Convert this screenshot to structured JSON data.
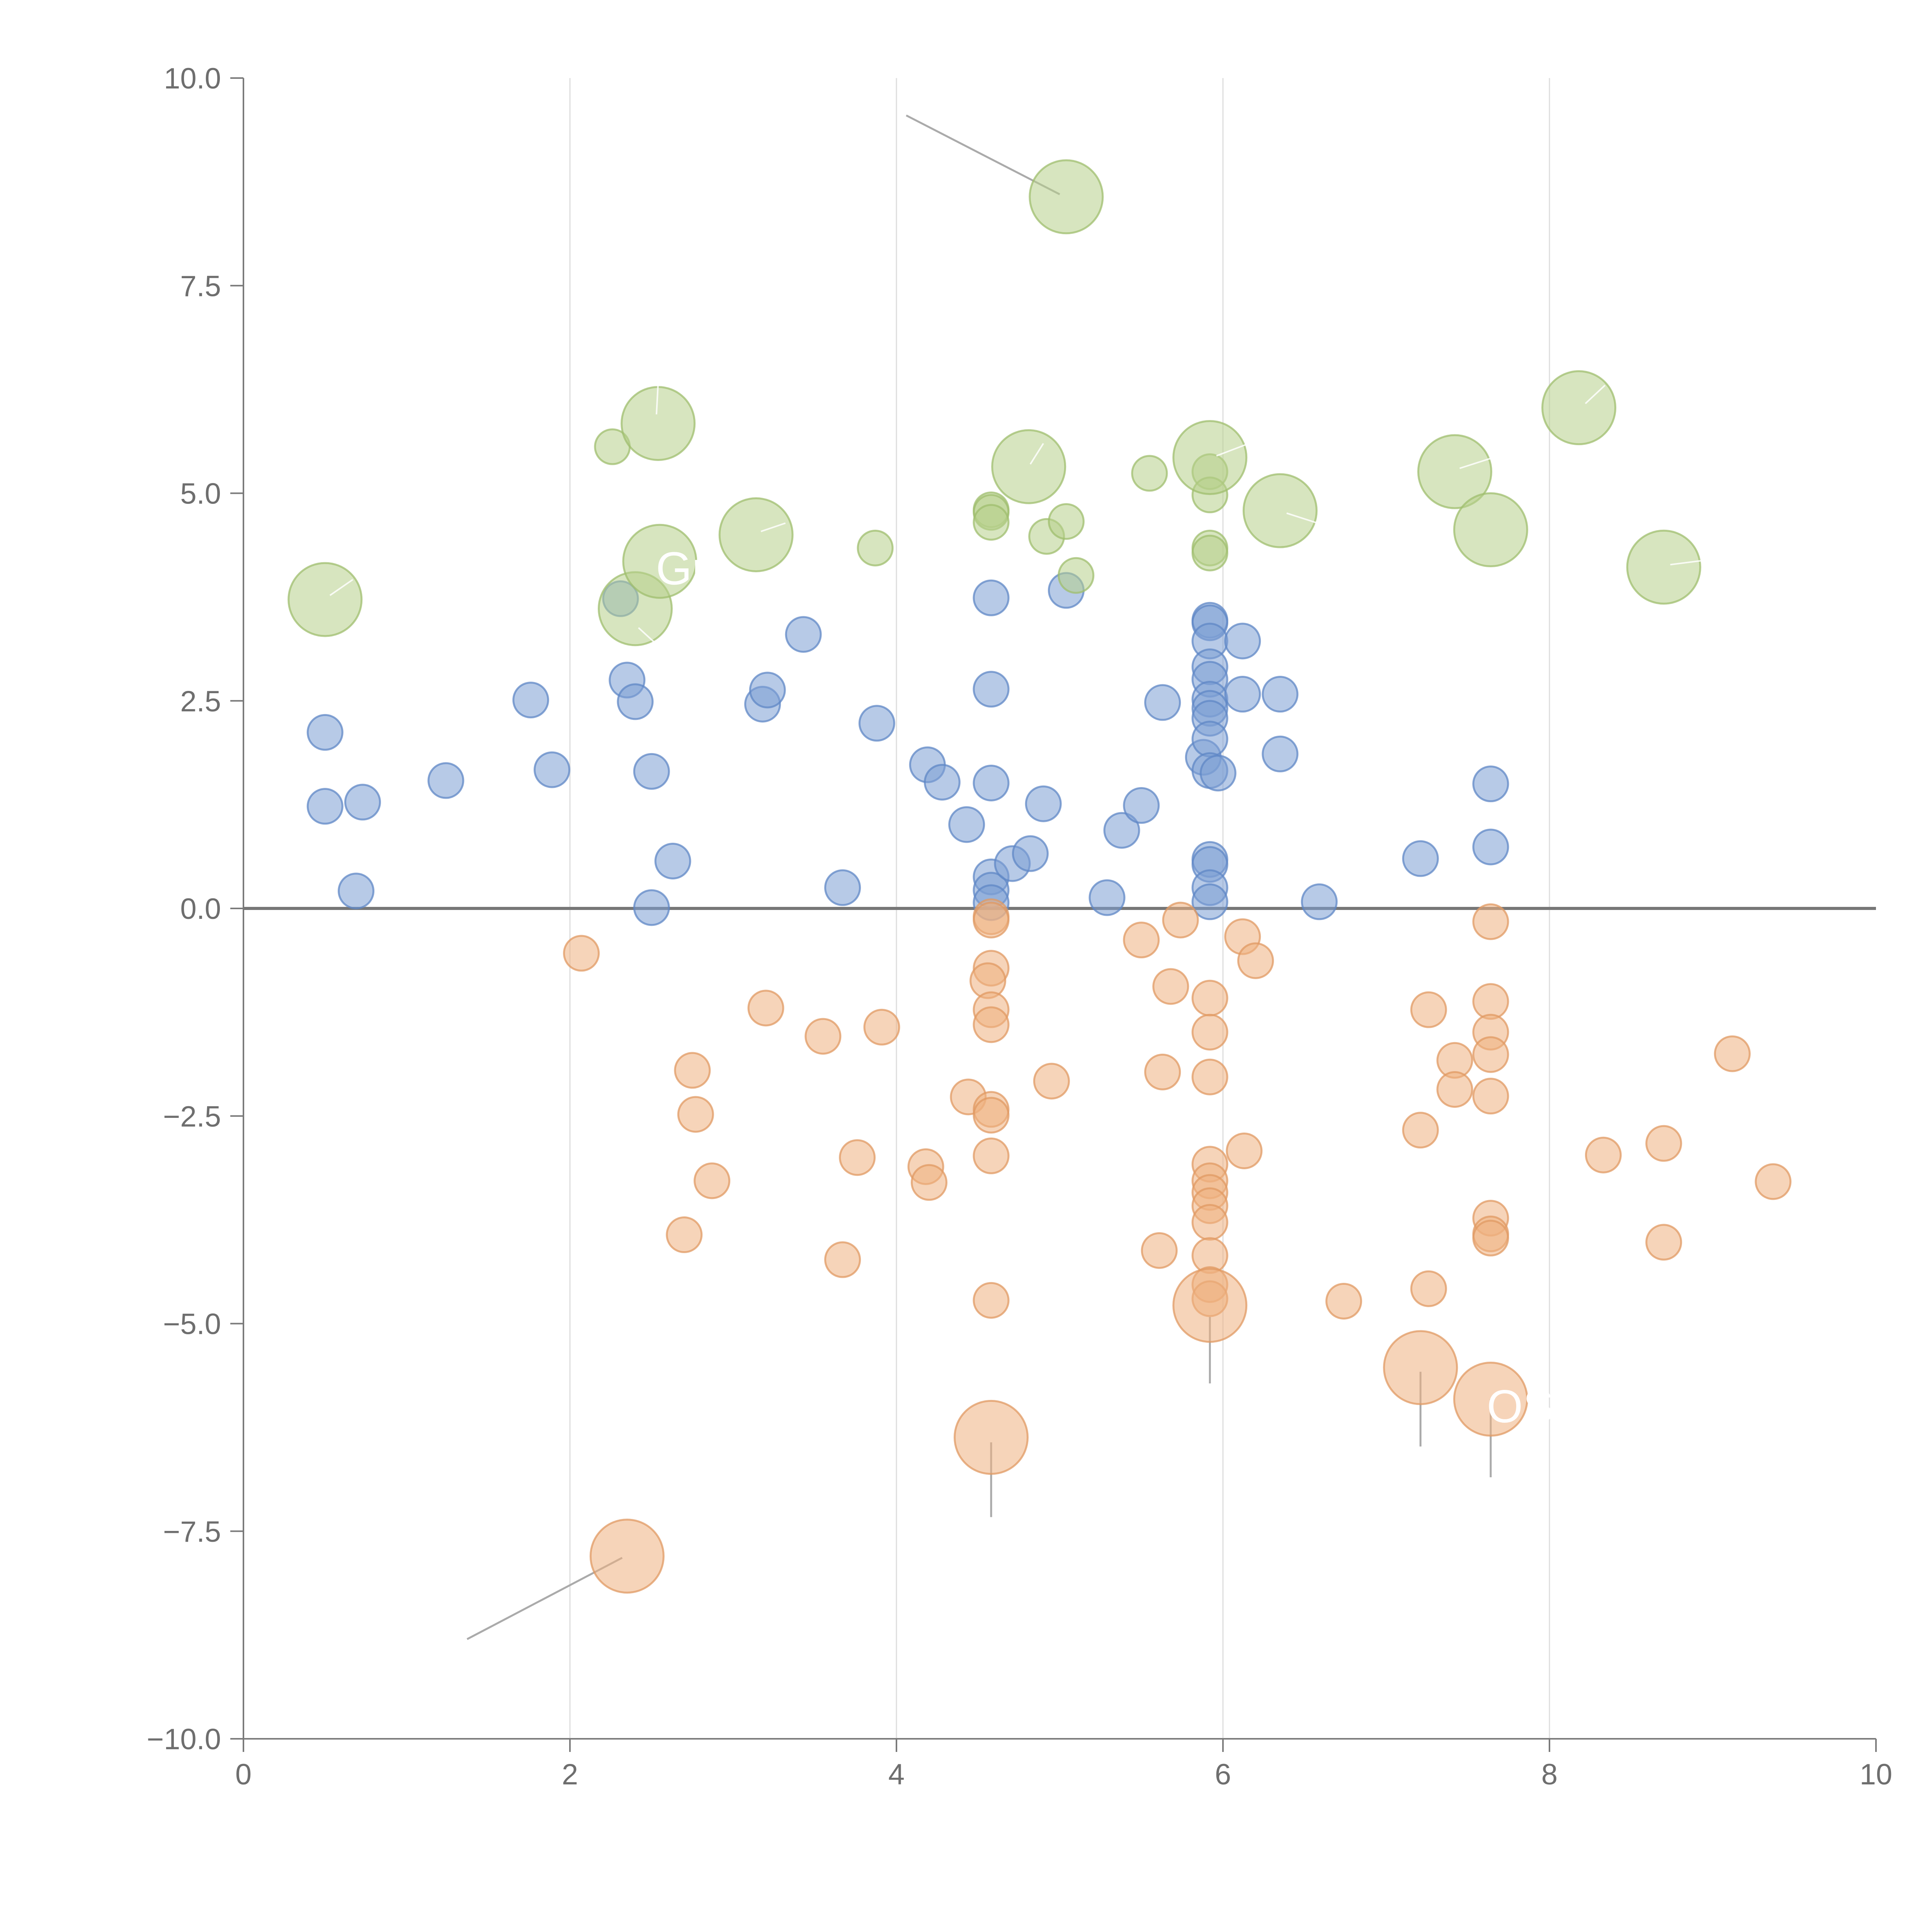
{
  "chart_data": {
    "type": "scatter",
    "title": "",
    "xlabel": "",
    "ylabel": "",
    "xlim": [
      0,
      10
    ],
    "ylim": [
      -10,
      10
    ],
    "x_ticks": [
      0,
      2,
      4,
      6,
      8,
      10
    ],
    "y_ticks": [
      -10,
      -7.5,
      -5,
      -2.5,
      0,
      2.5,
      5,
      7.5,
      10
    ],
    "x_tick_labels": [
      "0",
      "2",
      "4",
      "6",
      "8",
      "10"
    ],
    "y_tick_labels": [
      "−10.0",
      "−7.5",
      "−5.0",
      "−2.5",
      "0.0",
      "2.5",
      "5.0",
      "7.5",
      "10.0"
    ],
    "vertical_grid": true,
    "horizontal_grid": false,
    "zero_line": true,
    "series": [
      {
        "name": "blue",
        "color": "#7b9fd4",
        "stroke": "#5f87c6",
        "points": [
          {
            "x": 0.5,
            "y": 2.12,
            "size": 1
          },
          {
            "x": 0.5,
            "y": 1.23,
            "size": 1
          },
          {
            "x": 0.73,
            "y": 1.28,
            "size": 1
          },
          {
            "x": 0.69,
            "y": 0.21,
            "size": 1
          },
          {
            "x": 1.24,
            "y": 1.54,
            "size": 1
          },
          {
            "x": 1.76,
            "y": 2.51,
            "size": 1
          },
          {
            "x": 1.89,
            "y": 1.67,
            "size": 1
          },
          {
            "x": 2.31,
            "y": 3.73,
            "size": 1
          },
          {
            "x": 2.35,
            "y": 2.75,
            "size": 1
          },
          {
            "x": 2.4,
            "y": 2.49,
            "size": 1
          },
          {
            "x": 2.5,
            "y": 1.65,
            "size": 1
          },
          {
            "x": 2.5,
            "y": 0.01,
            "size": 1
          },
          {
            "x": 2.63,
            "y": 0.57,
            "size": 1
          },
          {
            "x": 3.18,
            "y": 2.46,
            "size": 1
          },
          {
            "x": 3.21,
            "y": 2.63,
            "size": 1
          },
          {
            "x": 3.43,
            "y": 3.3,
            "size": 1
          },
          {
            "x": 3.67,
            "y": 0.25,
            "size": 1
          },
          {
            "x": 3.88,
            "y": 2.23,
            "size": 1
          },
          {
            "x": 4.19,
            "y": 1.73,
            "size": 1
          },
          {
            "x": 4.28,
            "y": 1.52,
            "size": 1
          },
          {
            "x": 4.43,
            "y": 1.01,
            "size": 1
          },
          {
            "x": 4.58,
            "y": 3.74,
            "size": 1
          },
          {
            "x": 4.58,
            "y": 2.64,
            "size": 1
          },
          {
            "x": 4.58,
            "y": 1.51,
            "size": 1
          },
          {
            "x": 4.58,
            "y": 0.38,
            "size": 1
          },
          {
            "x": 4.58,
            "y": 0.22,
            "size": 1
          },
          {
            "x": 4.58,
            "y": 0.07,
            "size": 1
          },
          {
            "x": 4.71,
            "y": 0.54,
            "size": 1
          },
          {
            "x": 4.82,
            "y": 0.66,
            "size": 1
          },
          {
            "x": 4.9,
            "y": 1.26,
            "size": 1
          },
          {
            "x": 5.04,
            "y": 3.83,
            "size": 1
          },
          {
            "x": 5.29,
            "y": 0.13,
            "size": 1
          },
          {
            "x": 5.38,
            "y": 0.94,
            "size": 1
          },
          {
            "x": 5.5,
            "y": 1.24,
            "size": 1
          },
          {
            "x": 5.63,
            "y": 2.48,
            "size": 1
          },
          {
            "x": 5.88,
            "y": 1.82,
            "size": 1
          },
          {
            "x": 5.92,
            "y": 3.47,
            "size": 1
          },
          {
            "x": 5.92,
            "y": 3.44,
            "size": 1
          },
          {
            "x": 5.92,
            "y": 3.22,
            "size": 1
          },
          {
            "x": 5.92,
            "y": 2.91,
            "size": 1
          },
          {
            "x": 5.92,
            "y": 2.76,
            "size": 1
          },
          {
            "x": 5.92,
            "y": 2.52,
            "size": 1
          },
          {
            "x": 5.92,
            "y": 2.41,
            "size": 1
          },
          {
            "x": 5.92,
            "y": 2.29,
            "size": 1
          },
          {
            "x": 5.92,
            "y": 2.04,
            "size": 1
          },
          {
            "x": 5.92,
            "y": 1.66,
            "size": 1
          },
          {
            "x": 5.97,
            "y": 1.63,
            "size": 1
          },
          {
            "x": 5.92,
            "y": 0.59,
            "size": 1
          },
          {
            "x": 5.92,
            "y": 0.53,
            "size": 1
          },
          {
            "x": 5.92,
            "y": 0.25,
            "size": 1
          },
          {
            "x": 5.92,
            "y": 0.08,
            "size": 1
          },
          {
            "x": 6.12,
            "y": 3.22,
            "size": 1
          },
          {
            "x": 6.12,
            "y": 2.58,
            "size": 1
          },
          {
            "x": 6.35,
            "y": 2.58,
            "size": 1
          },
          {
            "x": 6.35,
            "y": 1.86,
            "size": 1
          },
          {
            "x": 6.59,
            "y": 0.08,
            "size": 1
          },
          {
            "x": 7.21,
            "y": 0.6,
            "size": 1
          },
          {
            "x": 7.64,
            "y": 1.5,
            "size": 1
          },
          {
            "x": 7.64,
            "y": 0.74,
            "size": 1
          }
        ]
      },
      {
        "name": "orange",
        "color": "#efb07f",
        "stroke": "#e09a63",
        "points": [
          {
            "x": 2.07,
            "y": -0.54,
            "size": 1
          },
          {
            "x": 2.75,
            "y": -1.95,
            "size": 1
          },
          {
            "x": 2.77,
            "y": -2.48,
            "size": 1
          },
          {
            "x": 2.7,
            "y": -3.93,
            "size": 1
          },
          {
            "x": 2.87,
            "y": -3.28,
            "size": 1
          },
          {
            "x": 3.2,
            "y": -1.2,
            "size": 1
          },
          {
            "x": 3.55,
            "y": -1.54,
            "size": 1
          },
          {
            "x": 3.67,
            "y": -4.23,
            "size": 1
          },
          {
            "x": 3.76,
            "y": -3.0,
            "size": 1
          },
          {
            "x": 3.91,
            "y": -1.43,
            "size": 1
          },
          {
            "x": 4.18,
            "y": -3.11,
            "size": 1
          },
          {
            "x": 4.2,
            "y": -3.3,
            "size": 1
          },
          {
            "x": 4.44,
            "y": -2.27,
            "size": 1
          },
          {
            "x": 4.58,
            "y": -0.1,
            "size": 1
          },
          {
            "x": 4.58,
            "y": -0.14,
            "size": 1
          },
          {
            "x": 4.58,
            "y": -0.72,
            "size": 1
          },
          {
            "x": 4.56,
            "y": -0.87,
            "size": 1
          },
          {
            "x": 4.58,
            "y": -1.22,
            "size": 1
          },
          {
            "x": 4.58,
            "y": -1.4,
            "size": 1
          },
          {
            "x": 4.58,
            "y": -2.42,
            "size": 1
          },
          {
            "x": 4.58,
            "y": -2.49,
            "size": 1
          },
          {
            "x": 4.58,
            "y": -2.98,
            "size": 1
          },
          {
            "x": 4.58,
            "y": -4.72,
            "size": 1
          },
          {
            "x": 4.95,
            "y": -2.08,
            "size": 1
          },
          {
            "x": 5.5,
            "y": -0.38,
            "size": 1
          },
          {
            "x": 5.63,
            "y": -1.97,
            "size": 1
          },
          {
            "x": 5.61,
            "y": -4.12,
            "size": 1
          },
          {
            "x": 5.68,
            "y": -0.94,
            "size": 1
          },
          {
            "x": 5.74,
            "y": -0.14,
            "size": 1
          },
          {
            "x": 5.92,
            "y": -1.08,
            "size": 1
          },
          {
            "x": 5.92,
            "y": -1.49,
            "size": 1
          },
          {
            "x": 5.92,
            "y": -2.03,
            "size": 1
          },
          {
            "x": 5.92,
            "y": -3.08,
            "size": 1
          },
          {
            "x": 5.92,
            "y": -3.28,
            "size": 1
          },
          {
            "x": 5.92,
            "y": -3.42,
            "size": 1
          },
          {
            "x": 5.92,
            "y": -3.58,
            "size": 1
          },
          {
            "x": 5.92,
            "y": -3.78,
            "size": 1
          },
          {
            "x": 5.92,
            "y": -4.18,
            "size": 1
          },
          {
            "x": 5.92,
            "y": -4.53,
            "size": 1
          },
          {
            "x": 5.92,
            "y": -4.7,
            "size": 1
          },
          {
            "x": 6.12,
            "y": -0.34,
            "size": 1
          },
          {
            "x": 6.13,
            "y": -2.92,
            "size": 1
          },
          {
            "x": 6.2,
            "y": -0.63,
            "size": 1
          },
          {
            "x": 6.74,
            "y": -4.73,
            "size": 1
          },
          {
            "x": 7.21,
            "y": -2.67,
            "size": 1
          },
          {
            "x": 7.26,
            "y": -1.22,
            "size": 1
          },
          {
            "x": 7.26,
            "y": -4.58,
            "size": 1
          },
          {
            "x": 7.42,
            "y": -1.83,
            "size": 1
          },
          {
            "x": 7.42,
            "y": -2.18,
            "size": 1
          },
          {
            "x": 7.64,
            "y": -0.16,
            "size": 1
          },
          {
            "x": 7.64,
            "y": -1.12,
            "size": 1
          },
          {
            "x": 7.64,
            "y": -1.49,
            "size": 1
          },
          {
            "x": 7.64,
            "y": -1.76,
            "size": 1
          },
          {
            "x": 7.64,
            "y": -2.26,
            "size": 1
          },
          {
            "x": 7.64,
            "y": -3.73,
            "size": 1
          },
          {
            "x": 7.64,
            "y": -3.92,
            "size": 1
          },
          {
            "x": 7.64,
            "y": -3.97,
            "size": 1
          },
          {
            "x": 8.33,
            "y": -2.97,
            "size": 1
          },
          {
            "x": 8.7,
            "y": -2.83,
            "size": 1
          },
          {
            "x": 8.7,
            "y": -4.02,
            "size": 1
          },
          {
            "x": 9.12,
            "y": -1.75,
            "size": 1
          },
          {
            "x": 9.37,
            "y": -3.29,
            "size": 1
          },
          {
            "x": 2.35,
            "y": -7.8,
            "size": 2.1
          },
          {
            "x": 4.58,
            "y": -6.37,
            "size": 2.1
          },
          {
            "x": 5.92,
            "y": -4.78,
            "size": 2.1
          },
          {
            "x": 7.21,
            "y": -5.53,
            "size": 2.1
          },
          {
            "x": 7.64,
            "y": -5.91,
            "size": 2.1
          }
        ]
      },
      {
        "name": "green",
        "color": "#b7d08a",
        "stroke": "#9fbd6e",
        "points": [
          {
            "x": 2.26,
            "y": 5.56,
            "size": 1
          },
          {
            "x": 3.87,
            "y": 4.34,
            "size": 1
          },
          {
            "x": 4.58,
            "y": 4.8,
            "size": 1
          },
          {
            "x": 4.58,
            "y": 4.77,
            "size": 1
          },
          {
            "x": 4.58,
            "y": 4.65,
            "size": 1
          },
          {
            "x": 4.92,
            "y": 4.48,
            "size": 1
          },
          {
            "x": 5.04,
            "y": 4.66,
            "size": 1
          },
          {
            "x": 5.1,
            "y": 4.01,
            "size": 1
          },
          {
            "x": 5.55,
            "y": 5.24,
            "size": 1
          },
          {
            "x": 5.92,
            "y": 5.26,
            "size": 1
          },
          {
            "x": 5.92,
            "y": 4.98,
            "size": 1
          },
          {
            "x": 5.92,
            "y": 4.34,
            "size": 1
          },
          {
            "x": 5.92,
            "y": 4.28,
            "size": 1
          },
          {
            "x": 0.5,
            "y": 3.72,
            "size": 2.1
          },
          {
            "x": 2.4,
            "y": 3.61,
            "size": 2.1
          },
          {
            "x": 2.54,
            "y": 5.84,
            "size": 2.1
          },
          {
            "x": 2.55,
            "y": 4.18,
            "size": 2.1
          },
          {
            "x": 3.14,
            "y": 4.5,
            "size": 2.1
          },
          {
            "x": 4.81,
            "y": 5.32,
            "size": 2.1
          },
          {
            "x": 5.04,
            "y": 8.57,
            "size": 2.1
          },
          {
            "x": 5.92,
            "y": 5.43,
            "size": 2.1
          },
          {
            "x": 6.35,
            "y": 4.79,
            "size": 2.1
          },
          {
            "x": 7.42,
            "y": 5.26,
            "size": 2.1
          },
          {
            "x": 7.64,
            "y": 4.56,
            "size": 2.1
          },
          {
            "x": 8.18,
            "y": 6.03,
            "size": 2.1
          },
          {
            "x": 8.7,
            "y": 4.11,
            "size": 2.1
          }
        ]
      }
    ],
    "annotations": [
      {
        "label": "Gro",
        "x": 2.55,
        "y": 4.18
      },
      {
        "label": "OS",
        "x": 7.64,
        "y": -5.91
      }
    ],
    "leader_lines_gray": [
      {
        "x1": 4.06,
        "y1": 9.55,
        "x2": 5.0,
        "y2": 8.6
      },
      {
        "x1": 1.37,
        "y1": -8.8,
        "x2": 2.32,
        "y2": -7.82
      },
      {
        "x1": 4.58,
        "y1": -6.43,
        "x2": 4.58,
        "y2": -7.33
      },
      {
        "x1": 5.92,
        "y1": -4.92,
        "x2": 5.92,
        "y2": -5.72
      },
      {
        "x1": 7.21,
        "y1": -5.58,
        "x2": 7.21,
        "y2": -6.48
      },
      {
        "x1": 7.64,
        "y1": -5.91,
        "x2": 7.64,
        "y2": -6.85
      }
    ],
    "leader_lines_white": [
      {
        "x1": 0.53,
        "y1": 3.77,
        "x2": 0.67,
        "y2": 3.96
      },
      {
        "x1": 2.42,
        "y1": 3.38,
        "x2": 2.52,
        "y2": 3.2
      },
      {
        "x1": 2.53,
        "y1": 5.95,
        "x2": 2.54,
        "y2": 6.32
      },
      {
        "x1": 3.17,
        "y1": 4.54,
        "x2": 3.32,
        "y2": 4.64
      },
      {
        "x1": 4.82,
        "y1": 5.35,
        "x2": 4.9,
        "y2": 5.6
      },
      {
        "x1": 5.96,
        "y1": 5.45,
        "x2": 6.16,
        "y2": 5.6
      },
      {
        "x1": 6.39,
        "y1": 4.76,
        "x2": 6.58,
        "y2": 4.64
      },
      {
        "x1": 7.45,
        "y1": 5.3,
        "x2": 7.64,
        "y2": 5.42
      },
      {
        "x1": 8.22,
        "y1": 6.08,
        "x2": 8.34,
        "y2": 6.3
      },
      {
        "x1": 8.74,
        "y1": 4.14,
        "x2": 8.94,
        "y2": 4.19
      }
    ]
  }
}
